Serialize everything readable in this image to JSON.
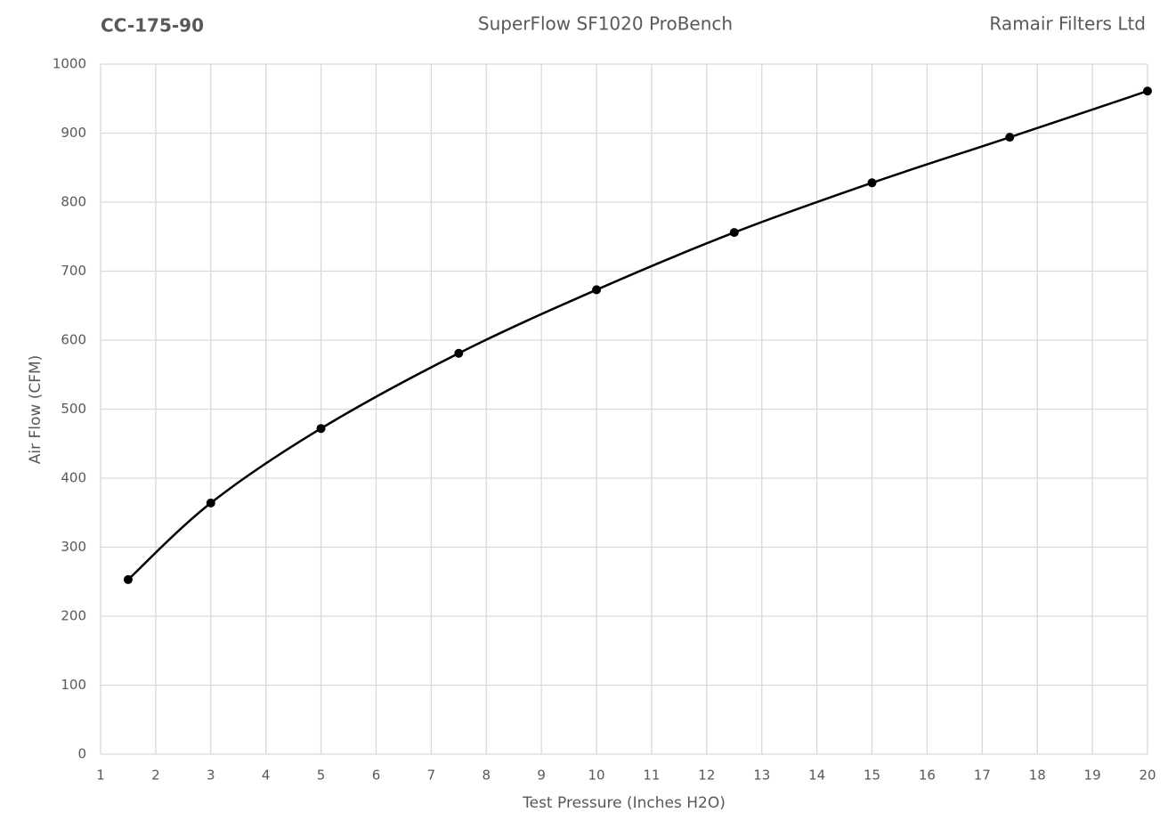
{
  "chart_data": {
    "type": "line",
    "title": "SuperFlow SF1020 ProBench",
    "part_number": "CC-175-90",
    "company": "Ramair Filters Ltd",
    "x_label": "Test Pressure (Inches H2O)",
    "y_label": "Air Flow (CFM)",
    "x": [
      1.5,
      3,
      5,
      7.5,
      10,
      12.5,
      15,
      17.5,
      20
    ],
    "values": [
      253,
      364,
      472,
      581,
      673,
      756,
      828,
      894,
      961
    ],
    "color": "#000000",
    "smooth": true,
    "xlim": [
      1,
      20
    ],
    "xticks": [
      1,
      2,
      3,
      4,
      5,
      6,
      7,
      8,
      9,
      10,
      11,
      12,
      13,
      14,
      15,
      16,
      17,
      18,
      19,
      20
    ],
    "ylim": [
      0,
      1000
    ],
    "yticks": [
      0,
      100,
      200,
      300,
      400,
      500,
      600,
      700,
      800,
      900,
      1000
    ],
    "grid": true
  }
}
